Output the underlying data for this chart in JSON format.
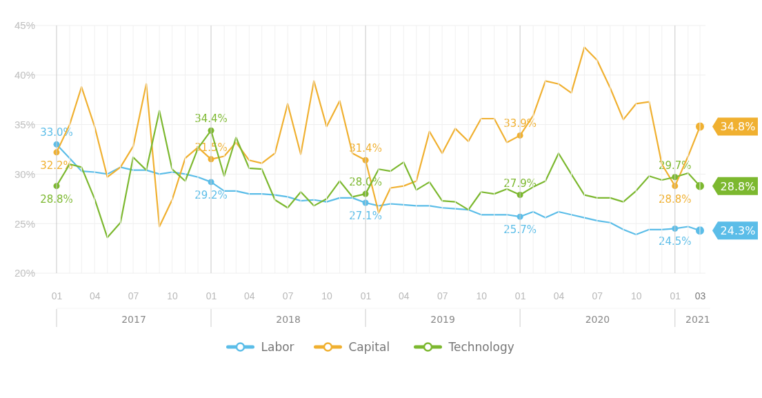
{
  "chart_data": {
    "type": "line",
    "x": [
      "2017-01",
      "2017-02",
      "2017-03",
      "2017-04",
      "2017-05",
      "2017-06",
      "2017-07",
      "2017-08",
      "2017-09",
      "2017-10",
      "2017-11",
      "2017-12",
      "2018-01",
      "2018-02",
      "2018-03",
      "2018-04",
      "2018-05",
      "2018-06",
      "2018-07",
      "2018-08",
      "2018-09",
      "2018-10",
      "2018-11",
      "2018-12",
      "2019-01",
      "2019-02",
      "2019-03",
      "2019-04",
      "2019-05",
      "2019-06",
      "2019-07",
      "2019-08",
      "2019-09",
      "2019-10",
      "2019-11",
      "2019-12",
      "2020-01",
      "2020-02",
      "2020-03",
      "2020-04",
      "2020-05",
      "2020-06",
      "2020-07",
      "2020-08",
      "2020-09",
      "2020-10",
      "2020-11",
      "2020-12",
      "2021-01",
      "2021-02",
      "2021-03"
    ],
    "series": [
      {
        "name": "Labor",
        "color": "#5bbde8",
        "values": [
          33.0,
          31.6,
          30.3,
          30.2,
          30.0,
          30.7,
          30.4,
          30.4,
          30.0,
          30.2,
          30.0,
          29.7,
          29.2,
          28.3,
          28.3,
          28.0,
          28.0,
          27.9,
          27.7,
          27.3,
          27.4,
          27.2,
          27.6,
          27.6,
          27.1,
          26.8,
          27.0,
          26.9,
          26.8,
          26.8,
          26.6,
          26.5,
          26.4,
          25.9,
          25.9,
          25.9,
          25.7,
          26.2,
          25.6,
          26.2,
          25.9,
          25.6,
          25.3,
          25.1,
          24.4,
          23.9,
          24.4,
          24.4,
          24.5,
          24.7,
          24.3
        ],
        "value_labels": [
          "33.0%",
          null,
          null,
          null,
          null,
          null,
          null,
          null,
          null,
          null,
          null,
          null,
          "29.2%",
          null,
          null,
          null,
          null,
          null,
          null,
          null,
          null,
          null,
          null,
          null,
          "27.1%",
          null,
          null,
          null,
          null,
          null,
          null,
          null,
          null,
          null,
          null,
          null,
          "25.7%",
          null,
          null,
          null,
          null,
          null,
          null,
          null,
          null,
          null,
          null,
          null,
          "24.5%",
          null,
          "24.3%"
        ]
      },
      {
        "name": "Capital",
        "color": "#f0b030",
        "values": [
          32.2,
          35.0,
          38.8,
          34.8,
          29.7,
          30.7,
          32.8,
          39.1,
          24.7,
          27.4,
          31.6,
          32.7,
          31.5,
          31.8,
          33.2,
          31.4,
          31.1,
          32.1,
          37.1,
          32.0,
          39.4,
          34.8,
          37.4,
          32.1,
          31.4,
          26.1,
          28.6,
          28.8,
          29.3,
          34.3,
          32.1,
          34.6,
          33.3,
          35.6,
          35.6,
          33.2,
          33.9,
          35.9,
          39.4,
          39.1,
          38.2,
          42.8,
          41.5,
          38.7,
          35.5,
          37.1,
          37.3,
          31.0,
          28.8,
          31.8,
          34.8
        ],
        "value_labels": [
          "32.2%",
          null,
          null,
          null,
          null,
          null,
          null,
          null,
          null,
          null,
          null,
          null,
          "31.5%",
          null,
          null,
          null,
          null,
          null,
          null,
          null,
          null,
          null,
          null,
          null,
          "31.4%",
          null,
          null,
          null,
          null,
          null,
          null,
          null,
          null,
          null,
          null,
          null,
          "33.9%",
          null,
          null,
          null,
          null,
          null,
          null,
          null,
          null,
          null,
          null,
          null,
          "28.8%",
          null,
          "34.8%"
        ]
      },
      {
        "name": "Technology",
        "color": "#7cb82f",
        "values": [
          28.8,
          31.0,
          30.7,
          27.5,
          23.6,
          25.1,
          31.7,
          30.4,
          36.4,
          30.5,
          29.3,
          32.6,
          34.4,
          29.8,
          33.7,
          30.6,
          30.5,
          27.4,
          26.6,
          28.2,
          26.8,
          27.5,
          29.3,
          27.7,
          28.0,
          30.5,
          30.3,
          31.2,
          28.4,
          29.2,
          27.3,
          27.2,
          26.4,
          28.2,
          28.0,
          28.5,
          27.9,
          28.7,
          29.3,
          32.1,
          30.0,
          27.9,
          27.6,
          27.6,
          27.2,
          28.3,
          29.8,
          29.4,
          29.7,
          30.1,
          28.8
        ],
        "value_labels": [
          "28.8%",
          null,
          null,
          null,
          null,
          null,
          null,
          null,
          null,
          null,
          null,
          null,
          "34.4%",
          null,
          null,
          null,
          null,
          null,
          null,
          null,
          null,
          null,
          null,
          null,
          "28.0%",
          null,
          null,
          null,
          null,
          null,
          null,
          null,
          null,
          null,
          null,
          null,
          "27.9%",
          null,
          null,
          null,
          null,
          null,
          null,
          null,
          null,
          null,
          null,
          null,
          "29.7%",
          null,
          "28.8%"
        ]
      }
    ],
    "xlim": [
      "2017-01",
      "2021-03"
    ],
    "xticks": [
      {
        "value": "2017-01",
        "label": "01"
      },
      {
        "value": "2017-04",
        "label": "04"
      },
      {
        "value": "2017-07",
        "label": "07"
      },
      {
        "value": "2017-10",
        "label": "10"
      },
      {
        "value": "2018-01",
        "label": "01"
      },
      {
        "value": "2018-04",
        "label": "04"
      },
      {
        "value": "2018-07",
        "label": "07"
      },
      {
        "value": "2018-10",
        "label": "10"
      },
      {
        "value": "2019-01",
        "label": "01"
      },
      {
        "value": "2019-04",
        "label": "04"
      },
      {
        "value": "2019-07",
        "label": "07"
      },
      {
        "value": "2019-10",
        "label": "10"
      },
      {
        "value": "2020-01",
        "label": "01"
      },
      {
        "value": "2020-04",
        "label": "04"
      },
      {
        "value": "2020-07",
        "label": "07"
      },
      {
        "value": "2020-10",
        "label": "10"
      },
      {
        "value": "2021-01",
        "label": "01"
      },
      {
        "value": "2021-03",
        "label": "03"
      }
    ],
    "ylim": [
      20,
      45
    ],
    "yticks": [
      {
        "value": 20,
        "label": "20%"
      },
      {
        "value": 25,
        "label": "25%"
      },
      {
        "value": 30,
        "label": "30%"
      },
      {
        "value": 35,
        "label": "35%"
      },
      {
        "value": 40,
        "label": "40%"
      },
      {
        "value": 45,
        "label": "45%"
      }
    ],
    "annotations": [
      "2017",
      "2018",
      "2019",
      "2020",
      "2021"
    ],
    "grid": true,
    "legend": "bottom",
    "line_style": "solid"
  }
}
